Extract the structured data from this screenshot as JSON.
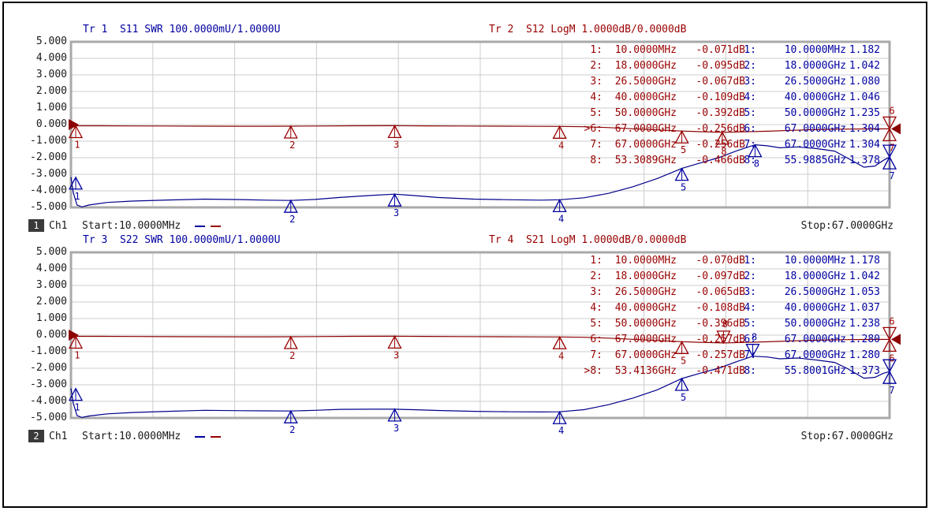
{
  "colors": {
    "swr_trace": "#00008B",
    "logm_trace": "#8B0000",
    "swr_text": "#0000A0",
    "logm_text": "#990000",
    "grid_inner": "#cccccc",
    "grid_border": "#a9a9a9",
    "axis_text": "#1a1a1a",
    "badge_bg": "#3a3a3a",
    "badge_fg": "#ffffff"
  },
  "chart_data": [
    {
      "type": "line",
      "title_left": "Tr 1  S11 SWR 100.0000mU/1.0000U",
      "title_right": "Tr 2  S12 LogM 1.0000dB/0.0000dB",
      "channel": {
        "badge": "1",
        "label": "Ch1"
      },
      "x_axis": {
        "start_label": "Start:10.0000MHz",
        "stop_label": "Stop:67.0000GHz",
        "start_ghz": 0.01,
        "stop_ghz": 67,
        "divisions": 10
      },
      "y_axis": {
        "tick_labels": [
          "5.000",
          "4.000",
          "3.000",
          "2.000",
          "1.000",
          "0.000",
          "-1.000",
          "-2.000",
          "-3.000",
          "-4.000",
          "-5.000"
        ],
        "divisions": 10,
        "logm_scale": "1.0000dB/div ref 0.0000dB",
        "swr_scale": "100.0000mU/div ref 1.0000U"
      },
      "active_marker": 6,
      "marker_table": {
        "logm": [
          {
            "idx": "1:",
            "freq": "10.0000MHz",
            "val": "-0.071dB"
          },
          {
            "idx": "2:",
            "freq": "18.0000GHz",
            "val": "-0.095dB"
          },
          {
            "idx": "3:",
            "freq": "26.5000GHz",
            "val": "-0.067dB"
          },
          {
            "idx": "4:",
            "freq": "40.0000GHz",
            "val": "-0.109dB"
          },
          {
            "idx": "5:",
            "freq": "50.0000GHz",
            "val": "-0.392dB"
          },
          {
            "idx": "6:",
            "freq": "67.0000GHz",
            "val": "-0.256dB"
          },
          {
            "idx": "7:",
            "freq": "67.0000GHz",
            "val": "-0.256dB"
          },
          {
            "idx": "8:",
            "freq": "53.3089GHz",
            "val": "-0.466dB"
          }
        ],
        "swr": [
          {
            "idx": "1:",
            "freq": "10.0000MHz",
            "val": "1.182"
          },
          {
            "idx": "2:",
            "freq": "18.0000GHz",
            "val": "1.042"
          },
          {
            "idx": "3:",
            "freq": "26.5000GHz",
            "val": "1.080"
          },
          {
            "idx": "4:",
            "freq": "40.0000GHz",
            "val": "1.046"
          },
          {
            "idx": "5:",
            "freq": "50.0000GHz",
            "val": "1.235"
          },
          {
            "idx": "6:",
            "freq": "67.0000GHz",
            "val": "1.304"
          },
          {
            "idx": "7:",
            "freq": "67.0000GHz",
            "val": "1.304"
          },
          {
            "idx": "8:",
            "freq": "55.9885GHz",
            "val": "1.378"
          }
        ]
      },
      "markers": {
        "logm": [
          {
            "label": "1",
            "f": 0.01,
            "v": -0.071,
            "dir": "up"
          },
          {
            "label": "2",
            "f": 18,
            "v": -0.095,
            "dir": "up"
          },
          {
            "label": "3",
            "f": 26.5,
            "v": -0.067,
            "dir": "up"
          },
          {
            "label": "4",
            "f": 40,
            "v": -0.109,
            "dir": "up"
          },
          {
            "label": "5",
            "f": 50,
            "v": -0.392,
            "dir": "up"
          },
          {
            "label": "8",
            "f": 53.3089,
            "v": -0.466,
            "dir": "up"
          }
        ],
        "swr": [
          {
            "label": "1",
            "f": 0.01,
            "v": 1.182,
            "dir": "up"
          },
          {
            "label": "2",
            "f": 18,
            "v": 1.042,
            "dir": "up"
          },
          {
            "label": "3",
            "f": 26.5,
            "v": 1.08,
            "dir": "up"
          },
          {
            "label": "4",
            "f": 40,
            "v": 1.046,
            "dir": "up"
          },
          {
            "label": "5",
            "f": 50,
            "v": 1.235,
            "dir": "up"
          },
          {
            "label": "8",
            "f": 55.9885,
            "v": 1.378,
            "dir": "up"
          }
        ]
      },
      "edge_labels": {
        "above_logm": "6",
        "below_logm": "7",
        "below_swr": "7"
      },
      "series": [
        {
          "name": "S11 SWR",
          "unit": "swr",
          "points": [
            [
              0.01,
              1.182
            ],
            [
              0.2,
              1.09
            ],
            [
              0.5,
              1.015
            ],
            [
              0.9,
              1.003
            ],
            [
              1.5,
              1.015
            ],
            [
              3,
              1.03
            ],
            [
              5,
              1.038
            ],
            [
              8,
              1.045
            ],
            [
              11,
              1.05
            ],
            [
              14,
              1.047
            ],
            [
              16,
              1.044
            ],
            [
              18,
              1.042
            ],
            [
              20,
              1.048
            ],
            [
              22,
              1.06
            ],
            [
              24.5,
              1.072
            ],
            [
              26.5,
              1.08
            ],
            [
              28,
              1.072
            ],
            [
              30,
              1.06
            ],
            [
              33,
              1.05
            ],
            [
              36,
              1.046
            ],
            [
              38.5,
              1.044
            ],
            [
              40,
              1.046
            ],
            [
              42,
              1.058
            ],
            [
              44,
              1.085
            ],
            [
              46,
              1.125
            ],
            [
              48,
              1.175
            ],
            [
              50,
              1.235
            ],
            [
              51.5,
              1.268
            ],
            [
              53,
              1.3
            ],
            [
              54.5,
              1.342
            ],
            [
              55.99,
              1.378
            ],
            [
              57,
              1.372
            ],
            [
              58,
              1.36
            ],
            [
              59.5,
              1.365
            ],
            [
              61,
              1.355
            ],
            [
              62.5,
              1.34
            ],
            [
              63.5,
              1.3
            ],
            [
              64.9,
              1.243
            ],
            [
              65.8,
              1.25
            ],
            [
              66.5,
              1.285
            ],
            [
              67,
              1.304
            ]
          ]
        },
        {
          "name": "S12 LogM",
          "unit": "db",
          "points": [
            [
              0.01,
              -0.071
            ],
            [
              2,
              -0.073
            ],
            [
              5,
              -0.08
            ],
            [
              8,
              -0.088
            ],
            [
              11,
              -0.094
            ],
            [
              14,
              -0.1
            ],
            [
              16,
              -0.098
            ],
            [
              18,
              -0.095
            ],
            [
              20,
              -0.085
            ],
            [
              23,
              -0.072
            ],
            [
              26.5,
              -0.067
            ],
            [
              29,
              -0.075
            ],
            [
              32,
              -0.088
            ],
            [
              35,
              -0.097
            ],
            [
              38,
              -0.104
            ],
            [
              40,
              -0.109
            ],
            [
              42,
              -0.13
            ],
            [
              44,
              -0.18
            ],
            [
              46,
              -0.25
            ],
            [
              48,
              -0.32
            ],
            [
              50,
              -0.392
            ],
            [
              51.5,
              -0.43
            ],
            [
              53.31,
              -0.466
            ],
            [
              55,
              -0.44
            ],
            [
              57,
              -0.4
            ],
            [
              59,
              -0.35
            ],
            [
              60.5,
              -0.31
            ],
            [
              62,
              -0.285
            ],
            [
              63.5,
              -0.27
            ],
            [
              65,
              -0.26
            ],
            [
              67,
              -0.256
            ]
          ]
        }
      ]
    },
    {
      "type": "line",
      "title_left": "Tr 3  S22 SWR 100.0000mU/1.0000U",
      "title_right": "Tr 4  S21 LogM 1.0000dB/0.0000dB",
      "channel": {
        "badge": "2",
        "label": "Ch1"
      },
      "x_axis": {
        "start_label": "Start:10.0000MHz",
        "stop_label": "Stop:67.0000GHz",
        "start_ghz": 0.01,
        "stop_ghz": 67,
        "divisions": 10
      },
      "y_axis": {
        "tick_labels": [
          "5.000",
          "4.000",
          "3.000",
          "2.000",
          "1.000",
          "0.000",
          "-1.000",
          "-2.000",
          "-3.000",
          "-4.000",
          "-5.000"
        ],
        "divisions": 10,
        "logm_scale": "1.0000dB/div ref 0.0000dB",
        "swr_scale": "100.0000mU/div ref 1.0000U"
      },
      "active_marker": 8,
      "marker_table": {
        "logm": [
          {
            "idx": "1:",
            "freq": "10.0000MHz",
            "val": "-0.070dB"
          },
          {
            "idx": "2:",
            "freq": "18.0000GHz",
            "val": "-0.097dB"
          },
          {
            "idx": "3:",
            "freq": "26.5000GHz",
            "val": "-0.065dB"
          },
          {
            "idx": "4:",
            "freq": "40.0000GHz",
            "val": "-0.108dB"
          },
          {
            "idx": "5:",
            "freq": "50.0000GHz",
            "val": "-0.396dB"
          },
          {
            "idx": "6:",
            "freq": "67.0000GHz",
            "val": "-0.257dB"
          },
          {
            "idx": "7:",
            "freq": "67.0000GHz",
            "val": "-0.257dB"
          },
          {
            "idx": "8:",
            "freq": "53.4136GHz",
            "val": "-0.471dB"
          }
        ],
        "swr": [
          {
            "idx": "1:",
            "freq": "10.0000MHz",
            "val": "1.178"
          },
          {
            "idx": "2:",
            "freq": "18.0000GHz",
            "val": "1.042"
          },
          {
            "idx": "3:",
            "freq": "26.5000GHz",
            "val": "1.053"
          },
          {
            "idx": "4:",
            "freq": "40.0000GHz",
            "val": "1.037"
          },
          {
            "idx": "5:",
            "freq": "50.0000GHz",
            "val": "1.238"
          },
          {
            "idx": "6:",
            "freq": "67.0000GHz",
            "val": "1.280"
          },
          {
            "idx": "7:",
            "freq": "67.0000GHz",
            "val": "1.280"
          },
          {
            "idx": "8:",
            "freq": "55.8001GHz",
            "val": "1.373"
          }
        ]
      },
      "markers": {
        "logm": [
          {
            "label": "1",
            "f": 0.01,
            "v": -0.07,
            "dir": "up"
          },
          {
            "label": "2",
            "f": 18,
            "v": -0.097,
            "dir": "up"
          },
          {
            "label": "3",
            "f": 26.5,
            "v": -0.065,
            "dir": "up"
          },
          {
            "label": "4",
            "f": 40,
            "v": -0.108,
            "dir": "up"
          },
          {
            "label": "5",
            "f": 50,
            "v": -0.396,
            "dir": "up"
          },
          {
            "label": "8",
            "f": 53.4136,
            "v": -0.471,
            "dir": "down"
          }
        ],
        "swr": [
          {
            "label": "1",
            "f": 0.01,
            "v": 1.178,
            "dir": "up"
          },
          {
            "label": "2",
            "f": 18,
            "v": 1.042,
            "dir": "up"
          },
          {
            "label": "3",
            "f": 26.5,
            "v": 1.053,
            "dir": "up"
          },
          {
            "label": "4",
            "f": 40,
            "v": 1.037,
            "dir": "up"
          },
          {
            "label": "5",
            "f": 50,
            "v": 1.238,
            "dir": "up"
          },
          {
            "label": "8",
            "f": 55.8001,
            "v": 1.373,
            "dir": "down"
          }
        ]
      },
      "edge_labels": {
        "above_logm": "6",
        "below_logm": "6",
        "below_swr": "7"
      },
      "series": [
        {
          "name": "S22 SWR",
          "unit": "swr",
          "points": [
            [
              0.01,
              1.178
            ],
            [
              0.2,
              1.09
            ],
            [
              0.5,
              1.015
            ],
            [
              0.9,
              1.003
            ],
            [
              1.5,
              1.012
            ],
            [
              3,
              1.025
            ],
            [
              5,
              1.033
            ],
            [
              8,
              1.04
            ],
            [
              11,
              1.046
            ],
            [
              14,
              1.044
            ],
            [
              16,
              1.043
            ],
            [
              18,
              1.042
            ],
            [
              20,
              1.046
            ],
            [
              22,
              1.052
            ],
            [
              24.5,
              1.053
            ],
            [
              26.5,
              1.053
            ],
            [
              28,
              1.05
            ],
            [
              30,
              1.045
            ],
            [
              33,
              1.04
            ],
            [
              36,
              1.037
            ],
            [
              38.5,
              1.036
            ],
            [
              40,
              1.037
            ],
            [
              42,
              1.05
            ],
            [
              44,
              1.08
            ],
            [
              46,
              1.12
            ],
            [
              48,
              1.17
            ],
            [
              50,
              1.238
            ],
            [
              51.5,
              1.27
            ],
            [
              53,
              1.3
            ],
            [
              54.5,
              1.34
            ],
            [
              55.8,
              1.373
            ],
            [
              57,
              1.368
            ],
            [
              58,
              1.357
            ],
            [
              59.5,
              1.362
            ],
            [
              61,
              1.35
            ],
            [
              62.5,
              1.335
            ],
            [
              63.5,
              1.3
            ],
            [
              64.9,
              1.24
            ],
            [
              65.8,
              1.245
            ],
            [
              66.5,
              1.27
            ],
            [
              67,
              1.28
            ]
          ]
        },
        {
          "name": "S21 LogM",
          "unit": "db",
          "points": [
            [
              0.01,
              -0.07
            ],
            [
              2,
              -0.073
            ],
            [
              5,
              -0.08
            ],
            [
              8,
              -0.09
            ],
            [
              11,
              -0.096
            ],
            [
              14,
              -0.101
            ],
            [
              16,
              -0.099
            ],
            [
              18,
              -0.097
            ],
            [
              20,
              -0.085
            ],
            [
              23,
              -0.07
            ],
            [
              26.5,
              -0.065
            ],
            [
              29,
              -0.074
            ],
            [
              32,
              -0.087
            ],
            [
              35,
              -0.096
            ],
            [
              38,
              -0.103
            ],
            [
              40,
              -0.108
            ],
            [
              42,
              -0.13
            ],
            [
              44,
              -0.18
            ],
            [
              46,
              -0.25
            ],
            [
              48,
              -0.325
            ],
            [
              50,
              -0.396
            ],
            [
              51.5,
              -0.435
            ],
            [
              53.41,
              -0.471
            ],
            [
              55,
              -0.445
            ],
            [
              57,
              -0.4
            ],
            [
              59,
              -0.35
            ],
            [
              60.5,
              -0.315
            ],
            [
              62,
              -0.29
            ],
            [
              63.5,
              -0.272
            ],
            [
              65,
              -0.262
            ],
            [
              67,
              -0.257
            ]
          ]
        }
      ]
    }
  ]
}
